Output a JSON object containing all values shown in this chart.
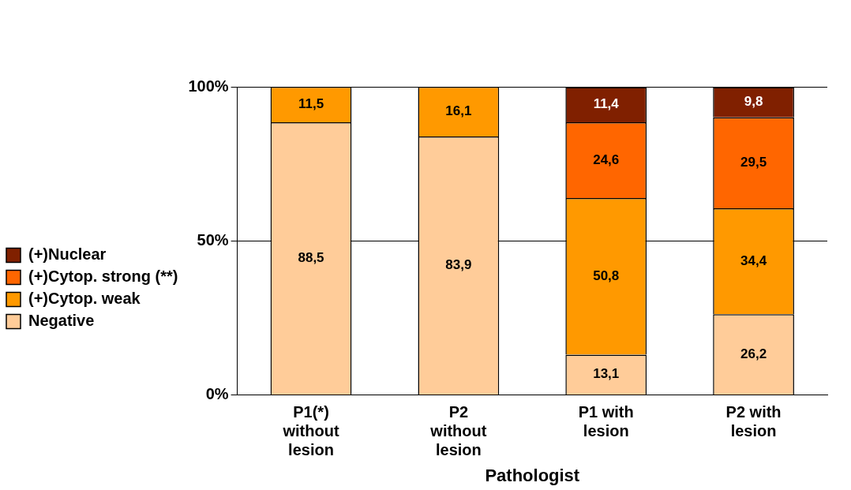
{
  "chart_data": {
    "type": "bar",
    "stacked": true,
    "xlabel": "Pathologist",
    "categories": [
      "P1(*) without lesion",
      "P2 without lesion",
      "P1 with lesion",
      "P2 with lesion"
    ],
    "series": [
      {
        "name": "Negative",
        "color": "#ffcc99",
        "values": [
          88.5,
          83.9,
          13.1,
          26.2
        ],
        "value_labels": [
          "88,5",
          "83,9",
          "13,1",
          "26,2"
        ]
      },
      {
        "name": "(+)Cytop. weak",
        "color": "#ff9900",
        "values": [
          11.5,
          16.1,
          50.8,
          34.4
        ],
        "value_labels": [
          "11,5",
          "16,1",
          "50,8",
          "34,4"
        ]
      },
      {
        "name": "(+)Cytop. strong (**)",
        "color": "#ff6600",
        "values": [
          null,
          null,
          24.6,
          29.5
        ],
        "value_labels": [
          null,
          null,
          "24,6",
          "29,5"
        ]
      },
      {
        "name": "(+)Nuclear",
        "color": "#802000",
        "values": [
          null,
          null,
          11.4,
          9.8
        ],
        "value_labels": [
          null,
          null,
          "11,4",
          "9,8"
        ]
      }
    ],
    "ylim": [
      0,
      100
    ],
    "yticks": [
      {
        "value": 0,
        "label": "0%"
      },
      {
        "value": 50,
        "label": "50%"
      },
      {
        "value": 100,
        "label": "100%"
      }
    ],
    "grid": "y",
    "legend": "left"
  }
}
